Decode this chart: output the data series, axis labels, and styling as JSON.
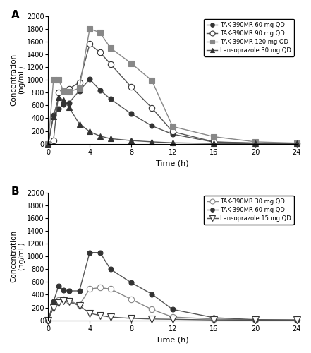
{
  "panel_A": {
    "series": [
      {
        "label": "TAK-390MR 60 mg QD",
        "color": "#333333",
        "line_color": "#555555",
        "marker": "o",
        "fillstyle": "full",
        "markersize": 5,
        "time": [
          0,
          0.5,
          1,
          1.5,
          2,
          3,
          4,
          5,
          6,
          8,
          10,
          12,
          16,
          20,
          24
        ],
        "conc": [
          0,
          450,
          550,
          620,
          640,
          830,
          1010,
          840,
          700,
          470,
          280,
          150,
          25,
          10,
          5
        ]
      },
      {
        "label": "TAK-390MR 90 mg QD",
        "color": "#333333",
        "line_color": "#555555",
        "marker": "o",
        "fillstyle": "none",
        "markersize": 6,
        "time": [
          0,
          0.5,
          1,
          1.5,
          2,
          3,
          4,
          5,
          6,
          8,
          10,
          12,
          16,
          20,
          24
        ],
        "conc": [
          0,
          50,
          800,
          820,
          860,
          960,
          1560,
          1430,
          1250,
          890,
          560,
          190,
          30,
          10,
          5
        ]
      },
      {
        "label": "TAK-390MR 120 mg QD",
        "color": "#888888",
        "line_color": "#888888",
        "marker": "s",
        "fillstyle": "full",
        "markersize": 6,
        "time": [
          0,
          0.5,
          1,
          1.5,
          2,
          3,
          4,
          5,
          6,
          8,
          10,
          12,
          16,
          20,
          24
        ],
        "conc": [
          0,
          1000,
          1000,
          820,
          810,
          870,
          1800,
          1740,
          1500,
          1260,
          990,
          270,
          110,
          30,
          10
        ]
      },
      {
        "label": "Lansoprazole 30 mg QD",
        "color": "#333333",
        "line_color": "#555555",
        "marker": "^",
        "fillstyle": "full",
        "markersize": 6,
        "time": [
          0,
          0.5,
          1,
          1.5,
          2,
          3,
          4,
          5,
          6,
          8,
          10,
          12,
          16,
          20,
          24
        ],
        "conc": [
          0,
          430,
          730,
          680,
          570,
          310,
          190,
          120,
          80,
          50,
          30,
          15,
          5,
          2,
          2
        ]
      }
    ],
    "ylabel": "Concentration\n(ng/mL)",
    "xlabel": "Time (h)",
    "ylim": [
      0,
      2000
    ],
    "xlim": [
      0,
      24
    ],
    "yticks": [
      0,
      200,
      400,
      600,
      800,
      1000,
      1200,
      1400,
      1600,
      1800,
      2000
    ],
    "xticks": [
      0,
      4,
      8,
      12,
      16,
      20,
      24
    ],
    "panel_label": "A"
  },
  "panel_B": {
    "series": [
      {
        "label": "TAK-390MR 30 mg QD",
        "color": "#888888",
        "line_color": "#888888",
        "marker": "o",
        "fillstyle": "none",
        "markersize": 6,
        "time": [
          0,
          0.5,
          1,
          1.5,
          2,
          3,
          4,
          5,
          6,
          8,
          10,
          12,
          16,
          20,
          24
        ],
        "conc": [
          0,
          270,
          320,
          330,
          310,
          240,
          490,
          510,
          490,
          330,
          170,
          50,
          20,
          5,
          2
        ]
      },
      {
        "label": "TAK-390MR 60 mg QD",
        "color": "#333333",
        "line_color": "#555555",
        "marker": "o",
        "fillstyle": "full",
        "markersize": 5,
        "time": [
          0,
          0.5,
          1,
          1.5,
          2,
          3,
          4,
          5,
          6,
          8,
          10,
          12,
          16,
          20,
          24
        ],
        "conc": [
          0,
          290,
          540,
          470,
          460,
          460,
          1060,
          1060,
          800,
          590,
          410,
          170,
          40,
          10,
          5
        ]
      },
      {
        "label": "Lansoprazole 15 mg QD",
        "color": "#333333",
        "line_color": "#555555",
        "marker": "v",
        "fillstyle": "none",
        "markersize": 7,
        "time": [
          0,
          0.5,
          1,
          1.5,
          2,
          3,
          4,
          5,
          6,
          8,
          10,
          12,
          16,
          20,
          24
        ],
        "conc": [
          0,
          200,
          270,
          310,
          290,
          230,
          110,
          75,
          50,
          30,
          20,
          15,
          5,
          2,
          2
        ]
      }
    ],
    "ylabel": "Concentration\n(ng/mL)",
    "xlabel": "Time (h)",
    "ylim": [
      0,
      2000
    ],
    "xlim": [
      0,
      24
    ],
    "yticks": [
      0,
      200,
      400,
      600,
      800,
      1000,
      1200,
      1400,
      1600,
      1800,
      2000
    ],
    "xticks": [
      0,
      4,
      8,
      12,
      16,
      20,
      24
    ],
    "panel_label": "B"
  },
  "line_width": 1.0,
  "background_color": "white"
}
